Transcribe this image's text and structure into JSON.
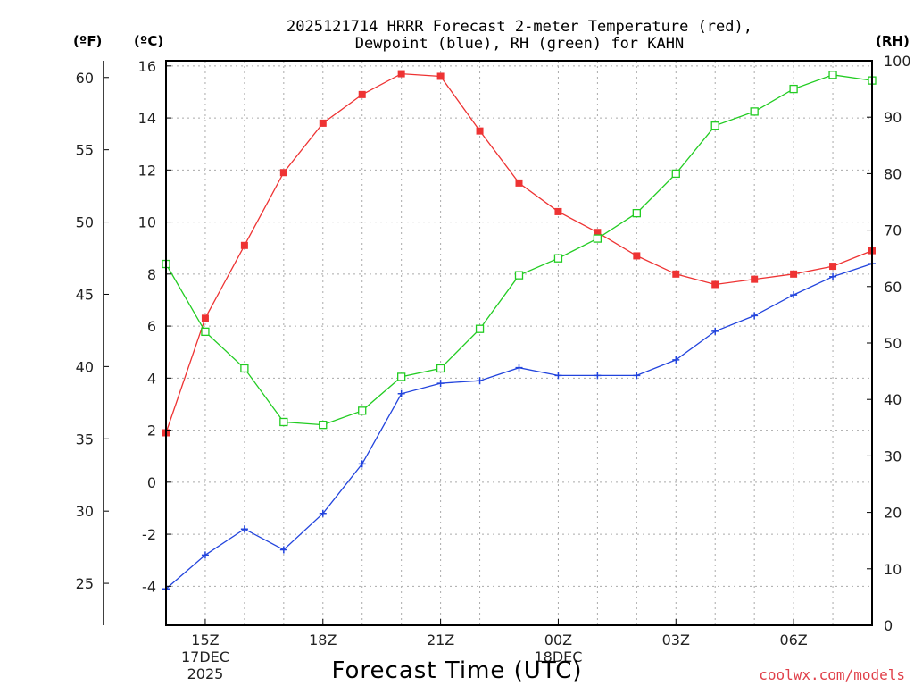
{
  "title_line1": "2025121714 HRRR Forecast 2-meter Temperature (red),",
  "title_line2": "Dewpoint (blue), RH (green) for KAHN",
  "units": {
    "f": "(ºF)",
    "c": "(ºC)",
    "rh": "(RH)"
  },
  "colors": {
    "temp": "#ee3333",
    "dewpoint": "#2244dd",
    "rh": "#22cc22",
    "credit": "#e0404a"
  },
  "credit": "coolwx.com/models",
  "chart_data": {
    "type": "line",
    "title": "2025121714 HRRR Forecast 2-meter Temperature (red), Dewpoint (blue), RH (green) for KAHN",
    "xlabel": "Forecast Time (UTC)",
    "x_hours_utc": [
      14,
      15,
      16,
      17,
      18,
      19,
      20,
      21,
      22,
      23,
      24,
      25,
      26,
      27,
      28,
      29,
      30,
      31,
      32
    ],
    "x_range": [
      14,
      32
    ],
    "x_ticks": [
      {
        "x": 15,
        "lines": [
          "15Z",
          "17DEC",
          "2025"
        ]
      },
      {
        "x": 18,
        "lines": [
          "18Z"
        ]
      },
      {
        "x": 21,
        "lines": [
          "21Z"
        ]
      },
      {
        "x": 24,
        "lines": [
          "00Z",
          "18DEC"
        ]
      },
      {
        "x": 27,
        "lines": [
          "03Z"
        ]
      },
      {
        "x": 30,
        "lines": [
          "06Z"
        ]
      }
    ],
    "y_left_c": {
      "label": "(ºC)",
      "range": [
        -5.5,
        16.2
      ],
      "ticks": [
        -4,
        -2,
        0,
        2,
        4,
        6,
        8,
        10,
        12,
        14,
        16
      ]
    },
    "y_left_f": {
      "label": "(ºF)",
      "ticks": [
        25,
        30,
        35,
        40,
        45,
        50,
        55,
        60
      ]
    },
    "y_right_rh": {
      "label": "(RH)",
      "range": [
        0,
        100
      ],
      "ticks": [
        0,
        10,
        20,
        30,
        40,
        50,
        60,
        70,
        80,
        90,
        100
      ]
    },
    "series": [
      {
        "name": "2-meter Temperature",
        "unit": "C",
        "axis": "left",
        "color": "#ee3333",
        "marker": "filled-square",
        "values": [
          1.9,
          6.3,
          9.1,
          11.9,
          13.8,
          14.9,
          15.7,
          15.6,
          13.5,
          11.5,
          10.4,
          9.6,
          8.7,
          8.0,
          7.6,
          7.8,
          8.0,
          8.3,
          8.9
        ]
      },
      {
        "name": "Dewpoint",
        "unit": "C",
        "axis": "left",
        "color": "#2244dd",
        "marker": "plus",
        "values": [
          -4.1,
          -2.8,
          -1.8,
          -2.6,
          -1.2,
          0.7,
          3.4,
          3.8,
          3.9,
          4.4,
          4.1,
          4.1,
          4.1,
          4.7,
          5.8,
          6.4,
          7.2,
          7.9,
          8.4
        ]
      },
      {
        "name": "RH",
        "unit": "%",
        "axis": "right",
        "color": "#22cc22",
        "marker": "open-square",
        "values": [
          64,
          52,
          45.5,
          36,
          35.5,
          38,
          44,
          45.5,
          52.5,
          62,
          65,
          68.5,
          73,
          80,
          88.5,
          91,
          95,
          97.5,
          96.5
        ]
      }
    ]
  }
}
